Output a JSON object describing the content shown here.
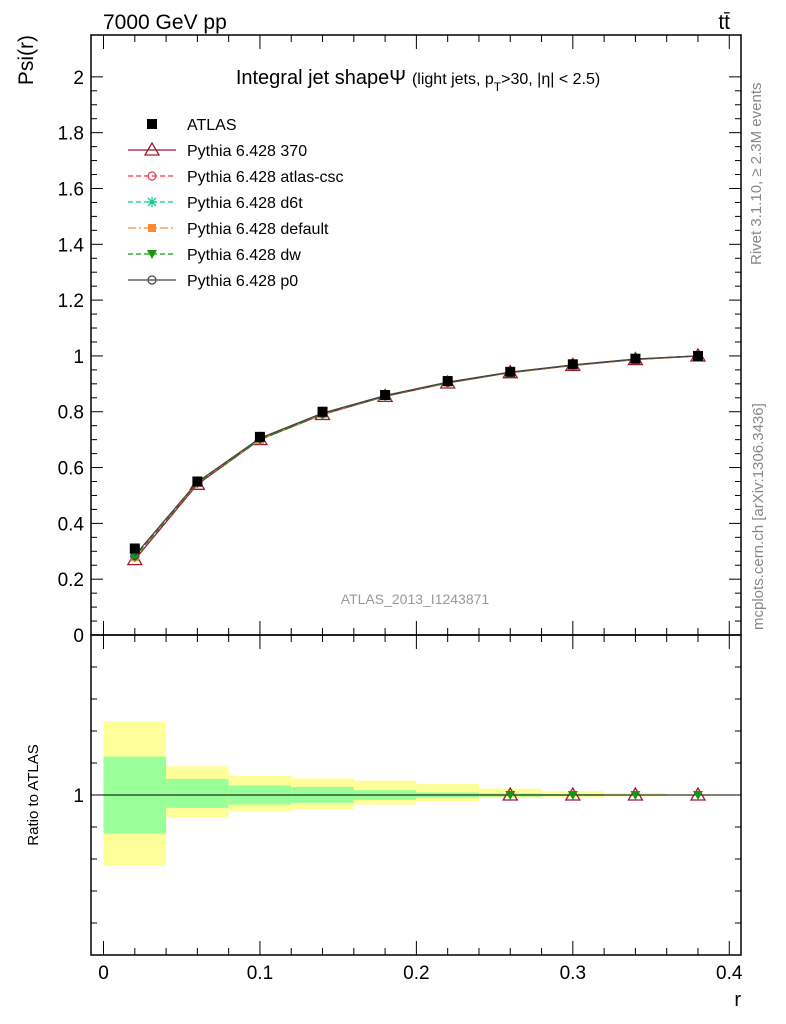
{
  "header": {
    "energy": "7000 GeV pp",
    "process": "tt̄",
    "rivet": "Rivet 3.1.10, ≥ 2.3M events",
    "mcplots": "mcplots.cern.ch [arXiv:1306.3436]",
    "analysis": "ATLAS_2013_I1243871"
  },
  "colors": {
    "data": "#000000",
    "p370": "#9b1b30",
    "atlascsc": "#ee3355",
    "d6t": "#11cc88",
    "default": "#ff8833",
    "dw": "#119911",
    "p0": "#444444",
    "band_stat": "#99ff99",
    "band_tot": "#ffff99"
  },
  "chart_data": [
    {
      "type": "line",
      "title_main": "Integral jet shape",
      "title_symbol": "Ψ",
      "title_paren_open": "(light jets, p",
      "title_sub": "T",
      "title_paren_close": ">30, |η| < 2.5)",
      "ylabel": "Psi(r)",
      "xlim": [
        -0.008,
        0.4075
      ],
      "ylim": [
        0,
        2.15
      ],
      "yticks": [
        {
          "v": 0,
          "label": "0"
        },
        {
          "v": 0.2,
          "label": "0.2"
        },
        {
          "v": 0.4,
          "label": "0.4"
        },
        {
          "v": 0.6,
          "label": "0.6"
        },
        {
          "v": 0.8,
          "label": "0.8"
        },
        {
          "v": 1.0,
          "label": "1"
        },
        {
          "v": 1.2,
          "label": "1.2"
        },
        {
          "v": 1.4,
          "label": "1.4"
        },
        {
          "v": 1.6,
          "label": "1.6"
        },
        {
          "v": 1.8,
          "label": "1.8"
        },
        {
          "v": 2.0,
          "label": "2"
        }
      ],
      "x": [
        0.02,
        0.06,
        0.1,
        0.14,
        0.18,
        0.22,
        0.26,
        0.3,
        0.34,
        0.38
      ],
      "series": [
        {
          "key": "atlas",
          "name": "ATLAS",
          "marker": "square",
          "line": "none",
          "values": [
            0.31,
            0.55,
            0.71,
            0.8,
            0.86,
            0.91,
            0.943,
            0.97,
            0.99,
            1.0
          ]
        },
        {
          "key": "p370",
          "name": "Pythia 6.428 370",
          "marker": "triangle-open",
          "line": "solid",
          "values": [
            0.27,
            0.54,
            0.7,
            0.79,
            0.855,
            0.903,
            0.94,
            0.966,
            0.987,
            1.0
          ]
        },
        {
          "key": "atlascsc",
          "name": "Pythia 6.428 atlas-csc",
          "marker": "circle-open",
          "line": "dashed",
          "values": [
            0.28,
            0.545,
            0.7,
            0.792,
            0.857,
            0.905,
            0.941,
            0.967,
            0.988,
            1.0
          ]
        },
        {
          "key": "d6t",
          "name": "Pythia 6.428 d6t",
          "marker": "star",
          "line": "dashed",
          "values": [
            0.28,
            0.545,
            0.7,
            0.792,
            0.857,
            0.905,
            0.941,
            0.967,
            0.988,
            1.0
          ]
        },
        {
          "key": "default",
          "name": "Pythia 6.428 default",
          "marker": "square-small",
          "line": "dashdot",
          "values": [
            0.28,
            0.545,
            0.7,
            0.792,
            0.857,
            0.905,
            0.941,
            0.967,
            0.988,
            1.0
          ]
        },
        {
          "key": "dw",
          "name": "Pythia 6.428 dw",
          "marker": "triangle-down",
          "line": "dashed",
          "values": [
            0.28,
            0.545,
            0.7,
            0.792,
            0.857,
            0.905,
            0.941,
            0.967,
            0.988,
            1.0
          ]
        },
        {
          "key": "p0",
          "name": "Pythia 6.428 p0",
          "marker": "circle-open",
          "line": "solid",
          "values": [
            0.285,
            0.548,
            0.705,
            0.795,
            0.858,
            0.906,
            0.942,
            0.968,
            0.989,
            1.0
          ]
        }
      ]
    },
    {
      "type": "line",
      "ylabel": "Ratio to ATLAS",
      "xlabel": "r",
      "xlim": [
        -0.008,
        0.4075
      ],
      "ylim": [
        0.5,
        1.5
      ],
      "yticks": [
        {
          "v": 1.0,
          "label": "1"
        }
      ],
      "xticks": [
        {
          "v": 0,
          "label": "0"
        },
        {
          "v": 0.1,
          "label": "0.1"
        },
        {
          "v": 0.2,
          "label": "0.2"
        },
        {
          "v": 0.3,
          "label": "0.3"
        },
        {
          "v": 0.4,
          "label": "0.4"
        }
      ],
      "bins": [
        {
          "lo": 0.0,
          "hi": 0.04,
          "stat": [
            0.88,
            1.12
          ],
          "tot": [
            0.78,
            1.23
          ]
        },
        {
          "lo": 0.04,
          "hi": 0.08,
          "stat": [
            0.96,
            1.05
          ],
          "tot": [
            0.93,
            1.09
          ]
        },
        {
          "lo": 0.08,
          "hi": 0.12,
          "stat": [
            0.97,
            1.03
          ],
          "tot": [
            0.95,
            1.06
          ]
        },
        {
          "lo": 0.12,
          "hi": 0.16,
          "stat": [
            0.975,
            1.025
          ],
          "tot": [
            0.955,
            1.052
          ]
        },
        {
          "lo": 0.16,
          "hi": 0.2,
          "stat": [
            0.985,
            1.015
          ],
          "tot": [
            0.97,
            1.045
          ]
        },
        {
          "lo": 0.2,
          "hi": 0.24,
          "stat": [
            0.992,
            1.008
          ],
          "tot": [
            0.98,
            1.035
          ]
        },
        {
          "lo": 0.24,
          "hi": 0.28,
          "stat": [
            0.995,
            1.005
          ],
          "tot": [
            0.99,
            1.02
          ]
        },
        {
          "lo": 0.28,
          "hi": 0.32,
          "stat": [
            0.997,
            1.003
          ],
          "tot": [
            0.993,
            1.012
          ]
        },
        {
          "lo": 0.32,
          "hi": 0.36,
          "stat": [
            0.998,
            1.002
          ],
          "tot": [
            0.996,
            1.006
          ]
        },
        {
          "lo": 0.36,
          "hi": 0.4,
          "stat": [
            0.999,
            1.001
          ],
          "tot": [
            0.998,
            1.002
          ]
        }
      ],
      "ratio_points": {
        "x": [
          0.26,
          0.3,
          0.34,
          0.38
        ],
        "values": [
          1.0,
          1.0,
          1.0,
          1.0
        ]
      }
    }
  ]
}
